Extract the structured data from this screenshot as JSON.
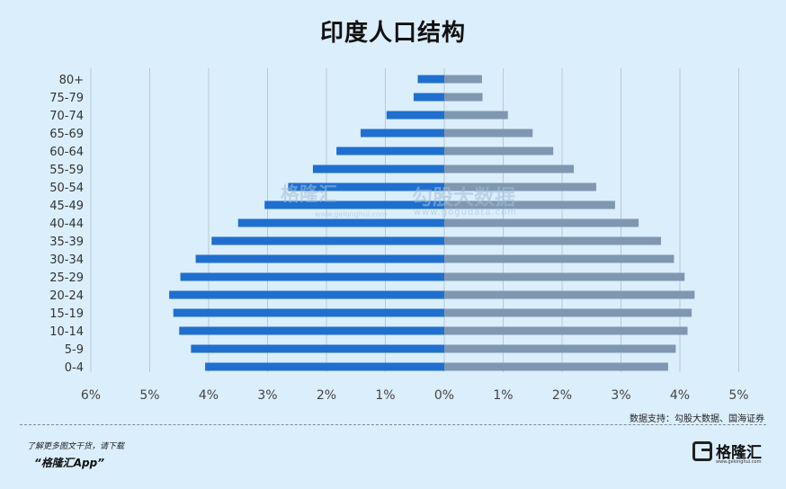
{
  "title": "印度人口结构",
  "chart_data": {
    "type": "bar",
    "orientation": "horizontal",
    "layout": "population-pyramid",
    "title": "印度人口结构",
    "categories": [
      "80+",
      "75-79",
      "70-74",
      "65-69",
      "60-64",
      "55-59",
      "50-54",
      "45-49",
      "40-44",
      "35-39",
      "30-34",
      "25-29",
      "20-24",
      "15-19",
      "10-14",
      "5-9",
      "0-4"
    ],
    "series": [
      {
        "color": "#1f6fcf",
        "side": "left",
        "values": [
          0.45,
          0.52,
          0.98,
          1.42,
          1.83,
          2.23,
          2.65,
          3.05,
          3.5,
          3.95,
          4.22,
          4.48,
          4.67,
          4.6,
          4.5,
          4.3,
          4.06
        ]
      },
      {
        "color": "#7f97b0",
        "side": "right",
        "values": [
          0.64,
          0.65,
          1.08,
          1.5,
          1.85,
          2.2,
          2.58,
          2.9,
          3.3,
          3.68,
          3.9,
          4.08,
          4.25,
          4.2,
          4.13,
          3.93,
          3.8
        ]
      }
    ],
    "x_tick_labels": [
      "6%",
      "5%",
      "4%",
      "3%",
      "2%",
      "1%",
      "0%",
      "1%",
      "2%",
      "3%",
      "4%",
      "5%"
    ],
    "xlim": [
      -6,
      5
    ],
    "grid": "vertical"
  },
  "watermark": {
    "left_text": "格隆汇",
    "left_url": "www.gelonghui.com",
    "right_text": "勾股大数据",
    "right_url": "www.gogudata.com"
  },
  "source": "数据支持：勾股大数据、国海证券",
  "footer": {
    "line1": "了解更多图文干货，请下载",
    "line2": "“格隆汇App”"
  },
  "logo": {
    "text": "格隆汇",
    "sub": "www.gelonghui.com"
  }
}
